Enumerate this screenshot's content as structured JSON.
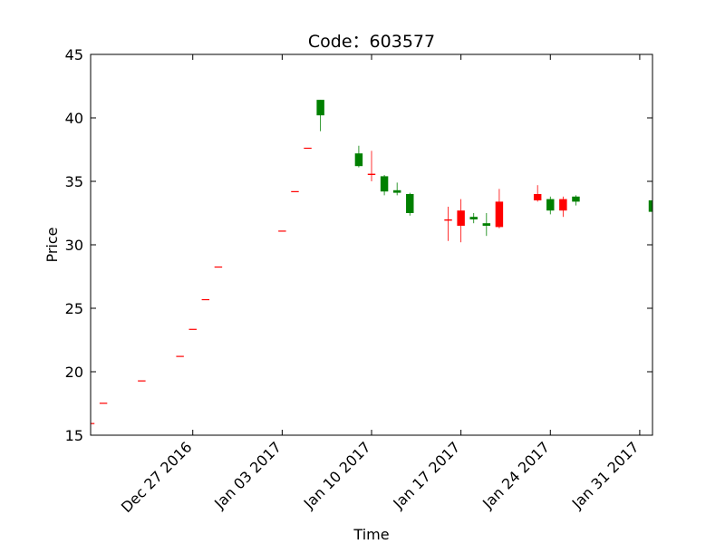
{
  "chart_data": {
    "type": "candlestick",
    "title": "Code：603577",
    "xlabel": "Time",
    "ylabel": "Price",
    "ylim": [
      15,
      45
    ],
    "xlim": [
      "2016-12-19",
      "2017-02-01"
    ],
    "y_ticks": [
      15,
      20,
      25,
      30,
      35,
      40,
      45
    ],
    "x_ticks": [
      {
        "date": "2016-12-27",
        "label": "Dec 27 2016"
      },
      {
        "date": "2017-01-03",
        "label": "Jan 03 2017"
      },
      {
        "date": "2017-01-10",
        "label": "Jan 10 2017"
      },
      {
        "date": "2017-01-17",
        "label": "Jan 17 2017"
      },
      {
        "date": "2017-01-24",
        "label": "Jan 24 2017"
      },
      {
        "date": "2017-01-31",
        "label": "Jan 31 2017"
      }
    ],
    "grid": false,
    "up_color": "#ff0000",
    "down_color": "#008000",
    "candles": [
      {
        "date": "2016-12-19",
        "open": 15.96,
        "high": 15.96,
        "low": 15.96,
        "close": 15.96
      },
      {
        "date": "2016-12-20",
        "open": 17.56,
        "high": 17.56,
        "low": 17.56,
        "close": 17.56
      },
      {
        "date": "2016-12-23",
        "open": 19.32,
        "high": 19.32,
        "low": 19.32,
        "close": 19.32
      },
      {
        "date": "2016-12-26",
        "open": 21.25,
        "high": 21.25,
        "low": 21.25,
        "close": 21.25
      },
      {
        "date": "2016-12-27",
        "open": 23.38,
        "high": 23.38,
        "low": 23.38,
        "close": 23.38
      },
      {
        "date": "2016-12-28",
        "open": 25.72,
        "high": 25.72,
        "low": 25.72,
        "close": 25.72
      },
      {
        "date": "2016-12-29",
        "open": 28.29,
        "high": 28.29,
        "low": 28.29,
        "close": 28.29
      },
      {
        "date": "2017-01-03",
        "open": 31.12,
        "high": 31.12,
        "low": 31.12,
        "close": 31.12
      },
      {
        "date": "2017-01-04",
        "open": 34.23,
        "high": 34.23,
        "low": 34.23,
        "close": 34.23
      },
      {
        "date": "2017-01-05",
        "open": 37.65,
        "high": 37.65,
        "low": 37.65,
        "close": 37.65
      },
      {
        "date": "2017-01-06",
        "open": 41.42,
        "high": 41.42,
        "low": 38.95,
        "close": 40.2
      },
      {
        "date": "2017-01-09",
        "open": 37.2,
        "high": 37.8,
        "low": 36.1,
        "close": 36.2
      },
      {
        "date": "2017-01-10",
        "open": 35.5,
        "high": 37.4,
        "low": 35.0,
        "close": 35.6
      },
      {
        "date": "2017-01-11",
        "open": 35.4,
        "high": 35.5,
        "low": 33.9,
        "close": 34.2
      },
      {
        "date": "2017-01-12",
        "open": 34.3,
        "high": 34.9,
        "low": 33.9,
        "close": 34.1
      },
      {
        "date": "2017-01-13",
        "open": 34.0,
        "high": 34.1,
        "low": 32.3,
        "close": 32.5
      },
      {
        "date": "2017-01-16",
        "open": 31.9,
        "high": 33.0,
        "low": 30.3,
        "close": 32.0
      },
      {
        "date": "2017-01-17",
        "open": 31.5,
        "high": 33.6,
        "low": 30.2,
        "close": 32.7
      },
      {
        "date": "2017-01-18",
        "open": 32.2,
        "high": 32.5,
        "low": 31.7,
        "close": 32.0
      },
      {
        "date": "2017-01-19",
        "open": 31.7,
        "high": 32.5,
        "low": 30.7,
        "close": 31.5
      },
      {
        "date": "2017-01-20",
        "open": 31.4,
        "high": 34.4,
        "low": 31.3,
        "close": 33.4
      },
      {
        "date": "2017-01-23",
        "open": 33.5,
        "high": 34.7,
        "low": 33.4,
        "close": 34.0
      },
      {
        "date": "2017-01-24",
        "open": 33.6,
        "high": 33.8,
        "low": 32.4,
        "close": 32.7
      },
      {
        "date": "2017-01-25",
        "open": 32.7,
        "high": 33.8,
        "low": 32.2,
        "close": 33.6
      },
      {
        "date": "2017-01-26",
        "open": 33.8,
        "high": 33.9,
        "low": 33.1,
        "close": 33.4
      },
      {
        "date": "2017-02-01",
        "open": 33.5,
        "high": 33.6,
        "low": 32.3,
        "close": 32.6
      }
    ]
  }
}
